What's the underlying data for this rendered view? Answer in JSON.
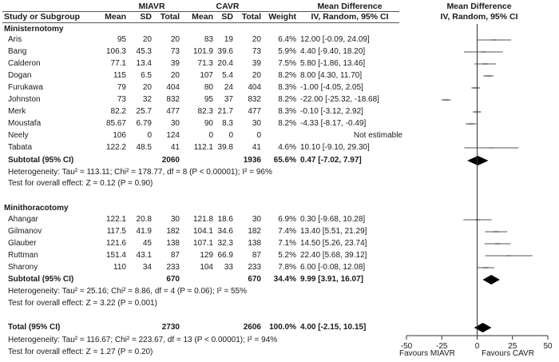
{
  "header": {
    "group1": "MIAVR",
    "group2": "CAVR",
    "md_title": "Mean Difference",
    "md_sub": "IV, Random, 95% CI",
    "plot_title": "Mean Difference",
    "plot_sub": "IV, Random, 95% CI",
    "col_study": "Study or Subgroup",
    "col_mean1": "Mean",
    "col_sd1": "SD",
    "col_total1": "Total",
    "col_mean2": "Mean",
    "col_sd2": "SD",
    "col_total2": "Total",
    "col_weight": "Weight"
  },
  "footer": {
    "favours_left": "Favours MIAVR",
    "favours_right": "Favours CAVR"
  },
  "chart_data": {
    "type": "forest",
    "x_ticks": [
      -50,
      -25,
      0,
      25,
      50
    ],
    "xlim": [
      -50,
      50
    ],
    "null_line": 0,
    "total": {
      "label": "Total (95% CI)",
      "total1": "2730",
      "total2": "2606",
      "weight": "100.0%",
      "ci_text": "4.00 [-2.15, 10.15]",
      "est": 4.0,
      "lo": -2.15,
      "hi": 10.15,
      "heterogeneity": "Heterogeneity: Tau² = 116.67; Chi² = 223.67, df = 13 (P < 0.00001); I² = 94%",
      "overall": "Test for overall effect: Z = 1.27 (P = 0.20)"
    },
    "subgroups": [
      {
        "name": "Ministernotomy",
        "studies": [
          {
            "study": "Aris",
            "m1": "95",
            "sd1": "20",
            "n1": "20",
            "m2": "83",
            "sd2": "19",
            "n2": "20",
            "weight": "6.4%",
            "ci_text": "12.00 [-0.09, 24.09]",
            "est": 12.0,
            "lo": -0.09,
            "hi": 24.09
          },
          {
            "study": "Bang",
            "m1": "106.3",
            "sd1": "45.3",
            "n1": "73",
            "m2": "101.9",
            "sd2": "39.6",
            "n2": "73",
            "weight": "5.9%",
            "ci_text": "4.40 [-9.40, 18.20]",
            "est": 4.4,
            "lo": -9.4,
            "hi": 18.2
          },
          {
            "study": "Calderon",
            "m1": "77.1",
            "sd1": "13.4",
            "n1": "39",
            "m2": "71.3",
            "sd2": "20.4",
            "n2": "39",
            "weight": "7.5%",
            "ci_text": "5.80 [-1.86, 13.46]",
            "est": 5.8,
            "lo": -1.86,
            "hi": 13.46
          },
          {
            "study": "Dogan",
            "m1": "115",
            "sd1": "6.5",
            "n1": "20",
            "m2": "107",
            "sd2": "5.4",
            "n2": "20",
            "weight": "8.2%",
            "ci_text": "8.00 [4.30, 11.70]",
            "est": 8.0,
            "lo": 4.3,
            "hi": 11.7
          },
          {
            "study": "Furukawa",
            "m1": "79",
            "sd1": "20",
            "n1": "404",
            "m2": "80",
            "sd2": "24",
            "n2": "404",
            "weight": "8.3%",
            "ci_text": "-1.00 [-4.05, 2.05]",
            "est": -1.0,
            "lo": -4.05,
            "hi": 2.05
          },
          {
            "study": "Johnston",
            "m1": "73",
            "sd1": "32",
            "n1": "832",
            "m2": "95",
            "sd2": "37",
            "n2": "832",
            "weight": "8.2%",
            "ci_text": "-22.00 [-25.32, -18.68]",
            "est": -22.0,
            "lo": -25.32,
            "hi": -18.68
          },
          {
            "study": "Merk",
            "m1": "82.2",
            "sd1": "25.7",
            "n1": "477",
            "m2": "82.3",
            "sd2": "21.7",
            "n2": "477",
            "weight": "8.3%",
            "ci_text": "-0.10 [-3.12, 2.92]",
            "est": -0.1,
            "lo": -3.12,
            "hi": 2.92
          },
          {
            "study": "Moustafa",
            "m1": "85.67",
            "sd1": "6.79",
            "n1": "30",
            "m2": "90",
            "sd2": "8.3",
            "n2": "30",
            "weight": "8.2%",
            "ci_text": "-4.33 [-8.17, -0.49]",
            "est": -4.33,
            "lo": -8.17,
            "hi": -0.49
          },
          {
            "study": "Neely",
            "m1": "106",
            "sd1": "0",
            "n1": "124",
            "m2": "0",
            "sd2": "0",
            "n2": "0",
            "weight": "",
            "ci_text": "Not estimable",
            "est": null,
            "lo": null,
            "hi": null
          },
          {
            "study": "Tabata",
            "m1": "122.2",
            "sd1": "48.5",
            "n1": "41",
            "m2": "112.1",
            "sd2": "39.8",
            "n2": "41",
            "weight": "4.6%",
            "ci_text": "10.10 [-9.10, 29.30]",
            "est": 10.1,
            "lo": -9.1,
            "hi": 29.3
          }
        ],
        "subtotal": {
          "label": "Subtotal (95% CI)",
          "n1": "2060",
          "n2": "1936",
          "weight": "65.6%",
          "ci_text": "0.47 [-7.02, 7.97]",
          "est": 0.47,
          "lo": -7.02,
          "hi": 7.97
        },
        "heterogeneity": "Heterogeneity: Tau² = 113.11; Chi² = 178.77, df = 8 (P < 0.00001); I² = 96%",
        "overall": "Test for overall effect: Z = 0.12 (P = 0.90)"
      },
      {
        "name": "Minithoracotomy",
        "studies": [
          {
            "study": "Ahangar",
            "m1": "122.1",
            "sd1": "20.8",
            "n1": "30",
            "m2": "121.8",
            "sd2": "18.6",
            "n2": "30",
            "weight": "6.9%",
            "ci_text": "0.30 [-9.68, 10.28]",
            "est": 0.3,
            "lo": -9.68,
            "hi": 10.28
          },
          {
            "study": "Gilmanov",
            "m1": "117.5",
            "sd1": "41.9",
            "n1": "182",
            "m2": "104.1",
            "sd2": "34.6",
            "n2": "182",
            "weight": "7.4%",
            "ci_text": "13.40 [5.51, 21.29]",
            "est": 13.4,
            "lo": 5.51,
            "hi": 21.29
          },
          {
            "study": "Glauber",
            "m1": "121.6",
            "sd1": "45",
            "n1": "138",
            "m2": "107.1",
            "sd2": "32.3",
            "n2": "138",
            "weight": "7.1%",
            "ci_text": "14.50 [5.26, 23.74]",
            "est": 14.5,
            "lo": 5.26,
            "hi": 23.74
          },
          {
            "study": "Ruttman",
            "m1": "151.4",
            "sd1": "43.1",
            "n1": "87",
            "m2": "129",
            "sd2": "66.9",
            "n2": "87",
            "weight": "5.2%",
            "ci_text": "22.40 [5.68, 39.12]",
            "est": 22.4,
            "lo": 5.68,
            "hi": 39.12
          },
          {
            "study": "Sharony",
            "m1": "110",
            "sd1": "34",
            "n1": "233",
            "m2": "104",
            "sd2": "33",
            "n2": "233",
            "weight": "7.8%",
            "ci_text": "6.00 [-0.08, 12.08]",
            "est": 6.0,
            "lo": -0.08,
            "hi": 12.08
          }
        ],
        "subtotal": {
          "label": "Subtotal (95% CI)",
          "n1": "670",
          "n2": "670",
          "weight": "34.4%",
          "ci_text": "9.99 [3.91, 16.07]",
          "est": 9.99,
          "lo": 3.91,
          "hi": 16.07
        },
        "heterogeneity": "Heterogeneity: Tau² = 25.16; Chi² = 8.86, df = 4 (P = 0.06); I² = 55%",
        "overall": "Test for overall effect: Z = 3.22 (P = 0.001)"
      }
    ]
  }
}
